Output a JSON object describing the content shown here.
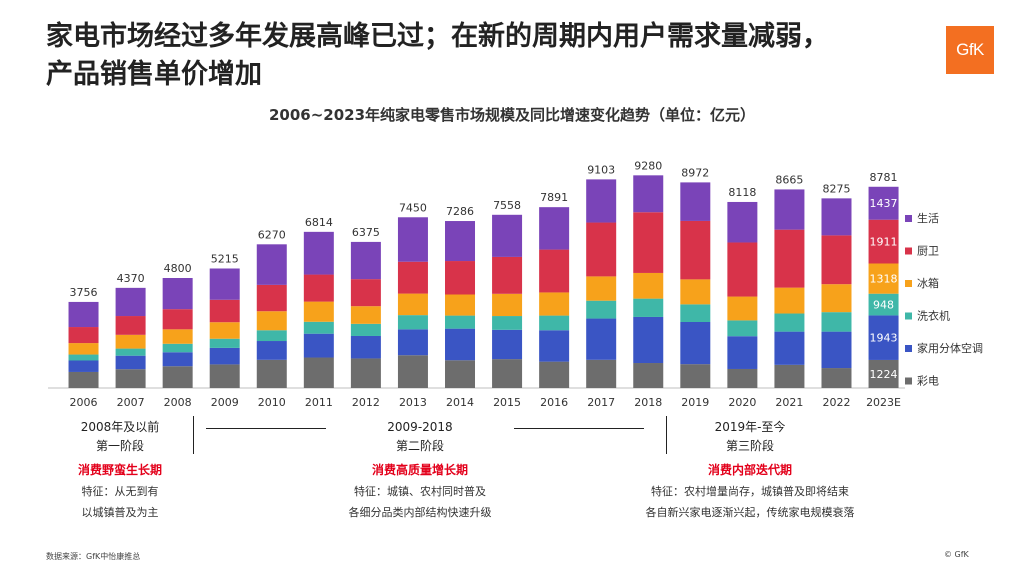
{
  "slide": {
    "title_line1": "家电市场经过多年发展高峰已过；在新的周期内用户需求量减弱，",
    "title_line2": "产品销售单价增加",
    "logo_text": "GfK",
    "source": "数据来源：GfK中怡康推总",
    "copyright": "© GfK"
  },
  "chart_data": {
    "type": "bar",
    "stacked": true,
    "title": "2006~2023年纯家电零售市场规模及同比增速变化趋势（单位：亿元）",
    "categories": [
      "2006",
      "2007",
      "2008",
      "2009",
      "2010",
      "2011",
      "2012",
      "2013",
      "2014",
      "2015",
      "2016",
      "2017",
      "2018",
      "2019",
      "2020",
      "2021",
      "2022",
      "2023E"
    ],
    "totals": [
      3756,
      4370,
      4800,
      5215,
      6270,
      6814,
      6375,
      7450,
      7286,
      7558,
      7891,
      9103,
      9280,
      8972,
      8118,
      8665,
      8275,
      8781
    ],
    "ylim": [
      0,
      9600
    ],
    "legend_position": "right",
    "series": [
      {
        "name": "彩电",
        "color": "#6d6d6d",
        "values": [
          700,
          820,
          950,
          1030,
          1230,
          1330,
          1290,
          1430,
          1210,
          1260,
          1150,
          1230,
          1090,
          1040,
          830,
          1010,
          870,
          1224
        ],
        "labels": [
          "",
          "",
          "",
          "",
          "",
          "",
          "",
          "",
          "",
          "",
          "",
          "",
          "",
          "",
          "",
          "",
          "",
          "1224"
        ]
      },
      {
        "name": "家用分体空调",
        "color": "#3a55c4",
        "values": [
          500,
          590,
          610,
          720,
          820,
          1040,
          980,
          1130,
          1380,
          1280,
          1370,
          1800,
          2010,
          1840,
          1430,
          1450,
          1590,
          1943
        ],
        "labels": [
          "",
          "",
          "",
          "",
          "",
          "",
          "",
          "",
          "",
          "",
          "",
          "",
          "",
          "",
          "",
          "",
          "",
          "1943"
        ]
      },
      {
        "name": "洗衣机",
        "color": "#3fb7a8",
        "values": [
          260,
          310,
          370,
          400,
          470,
          520,
          530,
          620,
          570,
          600,
          640,
          780,
          800,
          770,
          690,
          790,
          850,
          948
        ],
        "labels": [
          "",
          "",
          "",
          "",
          "",
          "",
          "",
          "",
          "",
          "",
          "",
          "",
          "",
          "",
          "",
          "",
          "",
          "948"
        ]
      },
      {
        "name": "冰箱",
        "color": "#f7a21b",
        "values": [
          500,
          600,
          630,
          720,
          830,
          880,
          770,
          940,
          920,
          970,
          1010,
          1060,
          1120,
          1090,
          1040,
          1130,
          1220,
          1318
        ],
        "labels": [
          "",
          "",
          "",
          "",
          "",
          "",
          "",
          "",
          "",
          "",
          "",
          "",
          "",
          "",
          "",
          "",
          "",
          "1318"
        ]
      },
      {
        "name": "厨卫",
        "color": "#d8334a",
        "values": [
          700,
          820,
          880,
          980,
          1150,
          1180,
          1180,
          1390,
          1460,
          1610,
          1870,
          2350,
          2650,
          2550,
          2360,
          2530,
          2130,
          1911
        ],
        "labels": [
          "",
          "",
          "",
          "",
          "",
          "",
          "",
          "",
          "",
          "",
          "",
          "",
          "",
          "",
          "",
          "",
          "",
          "1911"
        ]
      },
      {
        "name": "生活",
        "color": "#7a44b8",
        "values": [
          1096,
          1230,
          1360,
          1365,
          1770,
          1864,
          1625,
          1940,
          1746,
          1838,
          1851,
          1883,
          1610,
          1682,
          1768,
          1755,
          1615,
          1437
        ],
        "labels": [
          "",
          "",
          "",
          "",
          "",
          "",
          "",
          "",
          "",
          "",
          "",
          "",
          "",
          "",
          "",
          "",
          "",
          "1437"
        ]
      }
    ]
  },
  "stages": [
    {
      "name": "2008年及以前",
      "sub": "第一阶段",
      "phase": "消费野蛮生长期",
      "note1": "特征：从无到有",
      "note2": "以城镇普及为主"
    },
    {
      "name": "2009-2018",
      "sub": "第二阶段",
      "phase": "消费高质量增长期",
      "note1": "特征：城镇、农村同时普及",
      "note2": "各细分品类内部结构快速升级"
    },
    {
      "name": "2019年-至今",
      "sub": "第三阶段",
      "phase": "消费内部迭代期",
      "note1": "特征：农村增量尚存，城镇普及即将结束",
      "note2": "各自新兴家电逐渐兴起，传统家电规模衰落"
    }
  ]
}
